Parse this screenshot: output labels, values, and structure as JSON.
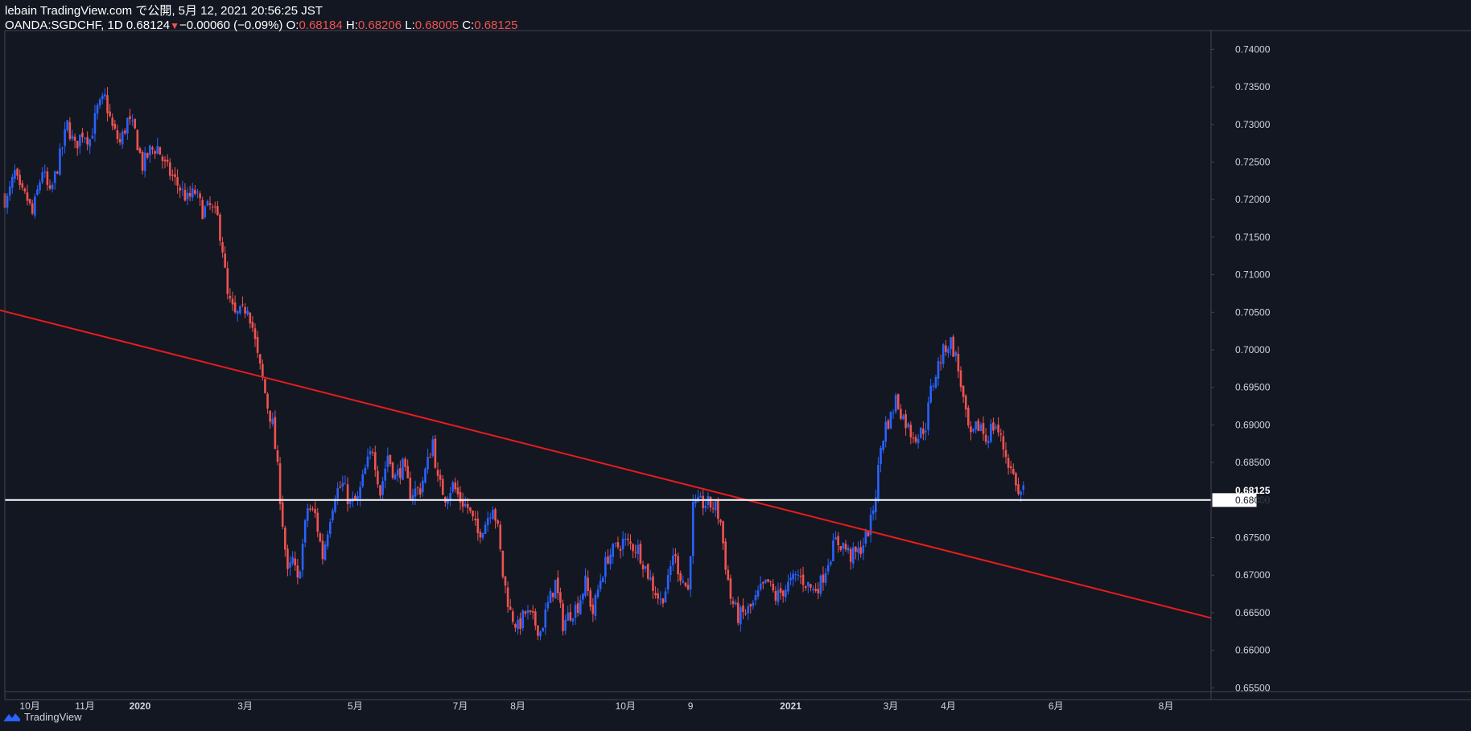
{
  "header": {
    "line1": "lebain TradingView.com で公開, 5月 12, 2021 20:56:25 JST",
    "symbol": "OANDA:SGDCHF, 1D",
    "last": "0.68124",
    "arrow": "▼",
    "change": "−0.00060 (−0.09%)",
    "o_label": "O:",
    "o_value": "0.68184",
    "h_label": "H:",
    "h_value": "0.68206",
    "l_label": "L:",
    "l_value": "0.68005",
    "c_label": "C:",
    "c_value": "0.68125"
  },
  "footer": {
    "brand": "TradingView",
    "logo_icon": "tradingview-logo-icon"
  },
  "colors": {
    "background": "#131722",
    "up": "#2962ff",
    "down": "#ef5350",
    "trendline": "#e91c1c",
    "hline": "#ffffff",
    "grid": "none"
  },
  "chart_data": {
    "type": "candlestick",
    "symbol": "OANDA:SGDCHF",
    "interval": "1D",
    "ylim": [
      0.6545,
      0.7425
    ],
    "y_ticks": [
      "0.74000",
      "0.73500",
      "0.73000",
      "0.72500",
      "0.72000",
      "0.71500",
      "0.71000",
      "0.70500",
      "0.70000",
      "0.69500",
      "0.69000",
      "0.68500",
      "0.68000",
      "0.67500",
      "0.67000",
      "0.66500",
      "0.66000",
      "0.65500"
    ],
    "price_labels": [
      {
        "text": "0.68125",
        "value": 0.68125,
        "style": "last"
      },
      {
        "text": "0.68000",
        "value": 0.68,
        "style": "hline"
      }
    ],
    "x_ticks": [
      {
        "label": "10月",
        "index": 30
      },
      {
        "label": "11月",
        "index": 52
      },
      {
        "label": "2020",
        "index": 74
      },
      {
        "label": "3月",
        "index": 116
      },
      {
        "label": "5月",
        "index": 160
      },
      {
        "label": "7月",
        "index": 202
      },
      {
        "label": "8月",
        "index": 225
      },
      {
        "label": "10月",
        "index": 268
      },
      {
        "label": "9",
        "index": 294
      },
      {
        "label": "2021",
        "index": 334
      },
      {
        "label": "3月",
        "index": 374
      },
      {
        "label": "4月",
        "index": 397
      },
      {
        "label": "6月",
        "index": 440
      },
      {
        "label": "8月",
        "index": 484
      }
    ],
    "x_range": [
      20,
      502
    ],
    "anchors": [
      [
        21,
        0.72
      ],
      [
        24,
        0.7235
      ],
      [
        26,
        0.721
      ],
      [
        29,
        0.72
      ],
      [
        31,
        0.718
      ],
      [
        35,
        0.724
      ],
      [
        38,
        0.7205
      ],
      [
        43,
        0.727
      ],
      [
        45,
        0.73
      ],
      [
        48,
        0.727
      ],
      [
        51,
        0.729
      ],
      [
        54,
        0.728
      ],
      [
        57,
        0.732
      ],
      [
        60,
        0.7335
      ],
      [
        63,
        0.7295
      ],
      [
        66,
        0.7275
      ],
      [
        69,
        0.7305
      ],
      [
        72,
        0.729
      ],
      [
        75,
        0.7245
      ],
      [
        78,
        0.7265
      ],
      [
        81,
        0.727
      ],
      [
        84,
        0.7245
      ],
      [
        87,
        0.723
      ],
      [
        90,
        0.7215
      ],
      [
        93,
        0.72
      ],
      [
        96,
        0.721
      ],
      [
        99,
        0.7185
      ],
      [
        102,
        0.719
      ],
      [
        105,
        0.7175
      ],
      [
        107,
        0.7135
      ],
      [
        109,
        0.707
      ],
      [
        112,
        0.7045
      ],
      [
        115,
        0.705
      ],
      [
        117,
        0.706
      ],
      [
        119,
        0.703
      ],
      [
        121,
        0.699
      ],
      [
        123,
        0.696
      ],
      [
        125,
        0.6925
      ],
      [
        127,
        0.69
      ],
      [
        129,
        0.684
      ],
      [
        131,
        0.677
      ],
      [
        133,
        0.67
      ],
      [
        135,
        0.672
      ],
      [
        137,
        0.669
      ],
      [
        139,
        0.674
      ],
      [
        141,
        0.679
      ],
      [
        144,
        0.678
      ],
      [
        147,
        0.6725
      ],
      [
        150,
        0.678
      ],
      [
        152,
        0.681
      ],
      [
        155,
        0.682
      ],
      [
        158,
        0.6795
      ],
      [
        161,
        0.68
      ],
      [
        164,
        0.684
      ],
      [
        167,
        0.687
      ],
      [
        170,
        0.681
      ],
      [
        173,
        0.686
      ],
      [
        176,
        0.683
      ],
      [
        179,
        0.6845
      ],
      [
        182,
        0.681
      ],
      [
        186,
        0.6815
      ],
      [
        189,
        0.685
      ],
      [
        191,
        0.688
      ],
      [
        193,
        0.6825
      ],
      [
        196,
        0.6805
      ],
      [
        199,
        0.682
      ],
      [
        202,
        0.68
      ],
      [
        205,
        0.679
      ],
      [
        209,
        0.6755
      ],
      [
        212,
        0.677
      ],
      [
        215,
        0.6795
      ],
      [
        217,
        0.676
      ],
      [
        219,
        0.67
      ],
      [
        222,
        0.665
      ],
      [
        225,
        0.663
      ],
      [
        228,
        0.665
      ],
      [
        231,
        0.664
      ],
      [
        234,
        0.6625
      ],
      [
        237,
        0.666
      ],
      [
        240,
        0.669
      ],
      [
        243,
        0.6635
      ],
      [
        246,
        0.665
      ],
      [
        249,
        0.666
      ],
      [
        252,
        0.669
      ],
      [
        255,
        0.665
      ],
      [
        258,
        0.6695
      ],
      [
        261,
        0.6725
      ],
      [
        264,
        0.6735
      ],
      [
        267,
        0.6745
      ],
      [
        270,
        0.674
      ],
      [
        273,
        0.6735
      ],
      [
        276,
        0.671
      ],
      [
        279,
        0.6685
      ],
      [
        282,
        0.6665
      ],
      [
        285,
        0.669
      ],
      [
        287,
        0.673
      ],
      [
        290,
        0.67
      ],
      [
        293,
        0.668
      ],
      [
        295,
        0.679
      ],
      [
        298,
        0.6795
      ],
      [
        301,
        0.6795
      ],
      [
        304,
        0.679
      ],
      [
        306,
        0.677
      ],
      [
        308,
        0.6715
      ],
      [
        310,
        0.667
      ],
      [
        313,
        0.6645
      ],
      [
        316,
        0.665
      ],
      [
        319,
        0.666
      ],
      [
        322,
        0.668
      ],
      [
        325,
        0.669
      ],
      [
        328,
        0.667
      ],
      [
        331,
        0.668
      ],
      [
        334,
        0.669
      ],
      [
        337,
        0.67
      ],
      [
        340,
        0.669
      ],
      [
        343,
        0.668
      ],
      [
        346,
        0.669
      ],
      [
        349,
        0.672
      ],
      [
        352,
        0.6745
      ],
      [
        355,
        0.674
      ],
      [
        358,
        0.6725
      ],
      [
        361,
        0.673
      ],
      [
        364,
        0.675
      ],
      [
        366,
        0.677
      ],
      [
        368,
        0.681
      ],
      [
        370,
        0.687
      ],
      [
        372,
        0.69
      ],
      [
        374,
        0.691
      ],
      [
        376,
        0.6935
      ],
      [
        379,
        0.691
      ],
      [
        382,
        0.689
      ],
      [
        385,
        0.6885
      ],
      [
        388,
        0.69
      ],
      [
        390,
        0.6945
      ],
      [
        393,
        0.698
      ],
      [
        396,
        0.7005
      ],
      [
        398,
        0.701
      ],
      [
        400,
        0.699
      ],
      [
        402,
        0.6955
      ],
      [
        404,
        0.691
      ],
      [
        406,
        0.688
      ],
      [
        408,
        0.6895
      ],
      [
        410,
        0.69
      ],
      [
        412,
        0.688
      ],
      [
        414,
        0.6895
      ],
      [
        416,
        0.69
      ],
      [
        418,
        0.688
      ],
      [
        420,
        0.686
      ],
      [
        422,
        0.684
      ],
      [
        424,
        0.6825
      ],
      [
        425,
        0.6805
      ],
      [
        427,
        0.6815
      ]
    ],
    "trendline": {
      "from": [
        0,
        0.7068
      ],
      "to": [
        502,
        0.6643
      ],
      "color": "#e91c1c"
    },
    "horizontal_line": {
      "value": 0.68,
      "color": "#ffffff"
    }
  }
}
